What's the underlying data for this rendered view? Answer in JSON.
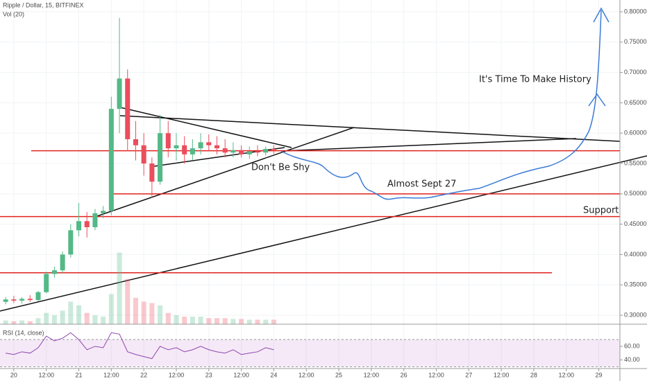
{
  "chart_data": [
    {
      "type": "candlestick",
      "title": "Ripple / Dollar, 15, BITFINEX",
      "subtitle": "Vol (20)",
      "x": [
        -3,
        0,
        3,
        6,
        9,
        12,
        15,
        18,
        21,
        24,
        27,
        30,
        33,
        36,
        39,
        42,
        45,
        48,
        51,
        54,
        57,
        60,
        63,
        66,
        69,
        72,
        75,
        78,
        81,
        84,
        87,
        90,
        93,
        96
      ],
      "open": [
        0.322,
        0.326,
        0.324,
        0.327,
        0.325,
        0.338,
        0.368,
        0.374,
        0.4,
        0.44,
        0.455,
        0.445,
        0.468,
        0.472,
        0.64,
        0.69,
        0.59,
        0.58,
        0.55,
        0.52,
        0.6,
        0.575,
        0.58,
        0.565,
        0.575,
        0.585,
        0.58,
        0.575,
        0.568,
        0.572,
        0.565,
        0.57,
        0.568,
        0.574
      ],
      "high": [
        0.33,
        0.332,
        0.33,
        0.333,
        0.34,
        0.372,
        0.38,
        0.405,
        0.45,
        0.485,
        0.47,
        0.475,
        0.48,
        0.66,
        0.79,
        0.705,
        0.62,
        0.6,
        0.56,
        0.63,
        0.62,
        0.6,
        0.595,
        0.59,
        0.6,
        0.598,
        0.595,
        0.59,
        0.585,
        0.58,
        0.578,
        0.58,
        0.578,
        0.58
      ],
      "low": [
        0.318,
        0.32,
        0.319,
        0.322,
        0.323,
        0.336,
        0.362,
        0.37,
        0.395,
        0.43,
        0.428,
        0.44,
        0.46,
        0.465,
        0.6,
        0.57,
        0.555,
        0.53,
        0.493,
        0.515,
        0.56,
        0.555,
        0.55,
        0.555,
        0.565,
        0.57,
        0.565,
        0.56,
        0.56,
        0.56,
        0.558,
        0.562,
        0.563,
        0.566
      ],
      "close": [
        0.326,
        0.324,
        0.327,
        0.325,
        0.338,
        0.368,
        0.374,
        0.4,
        0.44,
        0.455,
        0.445,
        0.468,
        0.472,
        0.64,
        0.69,
        0.59,
        0.58,
        0.55,
        0.52,
        0.6,
        0.575,
        0.58,
        0.565,
        0.575,
        0.585,
        0.58,
        0.575,
        0.568,
        0.572,
        0.565,
        0.57,
        0.568,
        0.574,
        0.572
      ],
      "volume": [
        5,
        4,
        5,
        4,
        8,
        15,
        12,
        18,
        30,
        25,
        15,
        12,
        10,
        40,
        95,
        60,
        35,
        30,
        28,
        25,
        15,
        12,
        10,
        10,
        10,
        8,
        8,
        8,
        7,
        7,
        6,
        6,
        6,
        6
      ],
      "volume_ylim": [
        0,
        430
      ],
      "up_color": "#53b987",
      "down_color": "#eb4d5c",
      "xlim": [
        -5.1,
        223.8
      ],
      "xticks": [
        {
          "value": 0,
          "label": "20"
        },
        {
          "value": 12,
          "label": "12:00"
        },
        {
          "value": 24,
          "label": "21"
        },
        {
          "value": 36,
          "label": "12:00"
        },
        {
          "value": 48,
          "label": "22"
        },
        {
          "value": 60,
          "label": "12:00"
        },
        {
          "value": 72,
          "label": "23"
        },
        {
          "value": 84,
          "label": "12:00"
        },
        {
          "value": 96,
          "label": "24"
        },
        {
          "value": 108,
          "label": "12:00"
        },
        {
          "value": 120,
          "label": "25"
        },
        {
          "value": 132,
          "label": "12:00"
        },
        {
          "value": 144,
          "label": "26"
        },
        {
          "value": 156,
          "label": "12:00"
        },
        {
          "value": 168,
          "label": "27"
        },
        {
          "value": 180,
          "label": "12:00"
        },
        {
          "value": 192,
          "label": "28"
        },
        {
          "value": 204,
          "label": "12:00"
        },
        {
          "value": 216,
          "label": "29"
        }
      ],
      "ylim": [
        0.2852,
        0.8194
      ],
      "yticks": [
        {
          "value": 0.3,
          "label": "0.30000"
        },
        {
          "value": 0.35,
          "label": "0.35000"
        },
        {
          "value": 0.4,
          "label": "0.40000"
        },
        {
          "value": 0.45,
          "label": "0.45000"
        },
        {
          "value": 0.5,
          "label": "0.50000"
        },
        {
          "value": 0.55,
          "label": "0.55000"
        },
        {
          "value": 0.6,
          "label": "0.60000"
        },
        {
          "value": 0.65,
          "label": "0.65000"
        },
        {
          "value": 0.7,
          "label": "0.70000"
        },
        {
          "value": 0.75,
          "label": "0.75000"
        },
        {
          "value": 0.8,
          "label": "0.80000"
        }
      ],
      "levels": [
        0.571,
        0.5,
        0.4625,
        0.37
      ],
      "level_color": "#e0201c",
      "annotations": [
        "It's Time To Make History",
        "Don't Be Shy",
        "Almost Sept 27",
        "Support"
      ]
    },
    {
      "type": "line",
      "title": "RSI (14, close)",
      "x": [
        -3,
        0,
        3,
        6,
        9,
        12,
        15,
        18,
        21,
        24,
        27,
        30,
        33,
        36,
        39,
        42,
        45,
        48,
        51,
        54,
        57,
        60,
        63,
        66,
        69,
        72,
        75,
        78,
        81,
        84,
        87,
        90,
        93,
        96
      ],
      "values": [
        50,
        48,
        52,
        50,
        58,
        75,
        68,
        72,
        80,
        70,
        55,
        60,
        58,
        80,
        78,
        52,
        48,
        45,
        42,
        60,
        55,
        58,
        52,
        55,
        60,
        55,
        52,
        50,
        55,
        48,
        50,
        52,
        58,
        55
      ],
      "color": "#8e44ad",
      "band": [
        30,
        70
      ],
      "ylim": [
        27.4,
        90.5
      ],
      "yticks": [
        {
          "value": 40,
          "label": "40.00"
        },
        {
          "value": 60,
          "label": "60.00"
        }
      ]
    }
  ]
}
